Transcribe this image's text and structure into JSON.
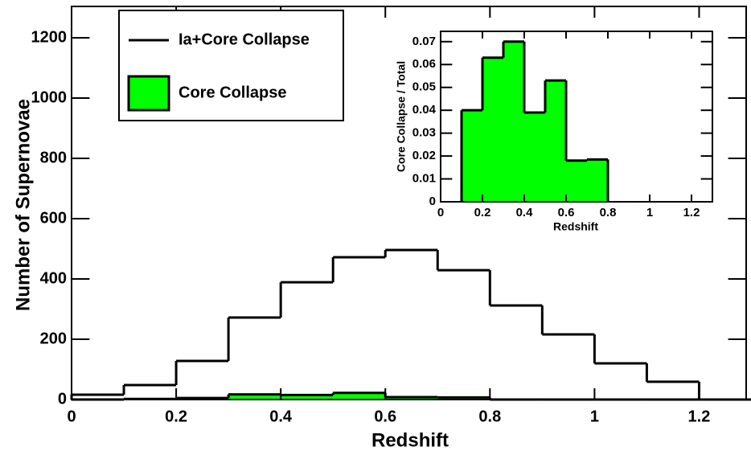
{
  "chart_data": [
    {
      "type": "histogram",
      "x_label": "Redshift",
      "y_label": "Number of Supernovae",
      "bins": [
        0,
        0.1,
        0.2,
        0.3,
        0.4,
        0.5,
        0.6,
        0.7,
        0.8,
        0.9,
        1.0,
        1.1,
        1.2,
        1.3
      ],
      "series": [
        {
          "name": "Ia+Core Collapse",
          "color": "#000000",
          "filled": false,
          "values": [
            16,
            48,
            128,
            272,
            389,
            472,
            496,
            429,
            312,
            216,
            120,
            59,
            0
          ]
        },
        {
          "name": "Core Collapse",
          "color": "#00ff00",
          "filled": true,
          "values": [
            0,
            2,
            5,
            17,
            15,
            22,
            8,
            7,
            0,
            0,
            0,
            0,
            0
          ]
        }
      ],
      "xlim": [
        0,
        1.29
      ],
      "xticks": [
        0,
        0.2,
        0.4,
        0.6,
        0.8,
        1,
        1.2
      ],
      "ylim": [
        0,
        1304
      ],
      "yticks": [
        0,
        200,
        400,
        600,
        800,
        1000,
        1200
      ],
      "legend": "top-left"
    },
    {
      "type": "histogram",
      "x_label": "Redshift",
      "y_label": "Core Collapse / Total",
      "bins": [
        0.1,
        0.2,
        0.3,
        0.4,
        0.5,
        0.6,
        0.7,
        0.8
      ],
      "series": [
        {
          "color": "#00ff00",
          "filled": true,
          "values": [
            0.04,
            0.063,
            0.07,
            0.039,
            0.053,
            0.018,
            0.0185
          ]
        }
      ],
      "xlim": [
        0,
        1.3
      ],
      "xticks": [
        0,
        0.2,
        0.4,
        0.6,
        0.8,
        1,
        1.2
      ],
      "ylim": [
        0,
        0.0745
      ],
      "yticks": [
        0,
        0.01,
        0.02,
        0.03,
        0.04,
        0.05,
        0.06,
        0.07
      ]
    }
  ]
}
